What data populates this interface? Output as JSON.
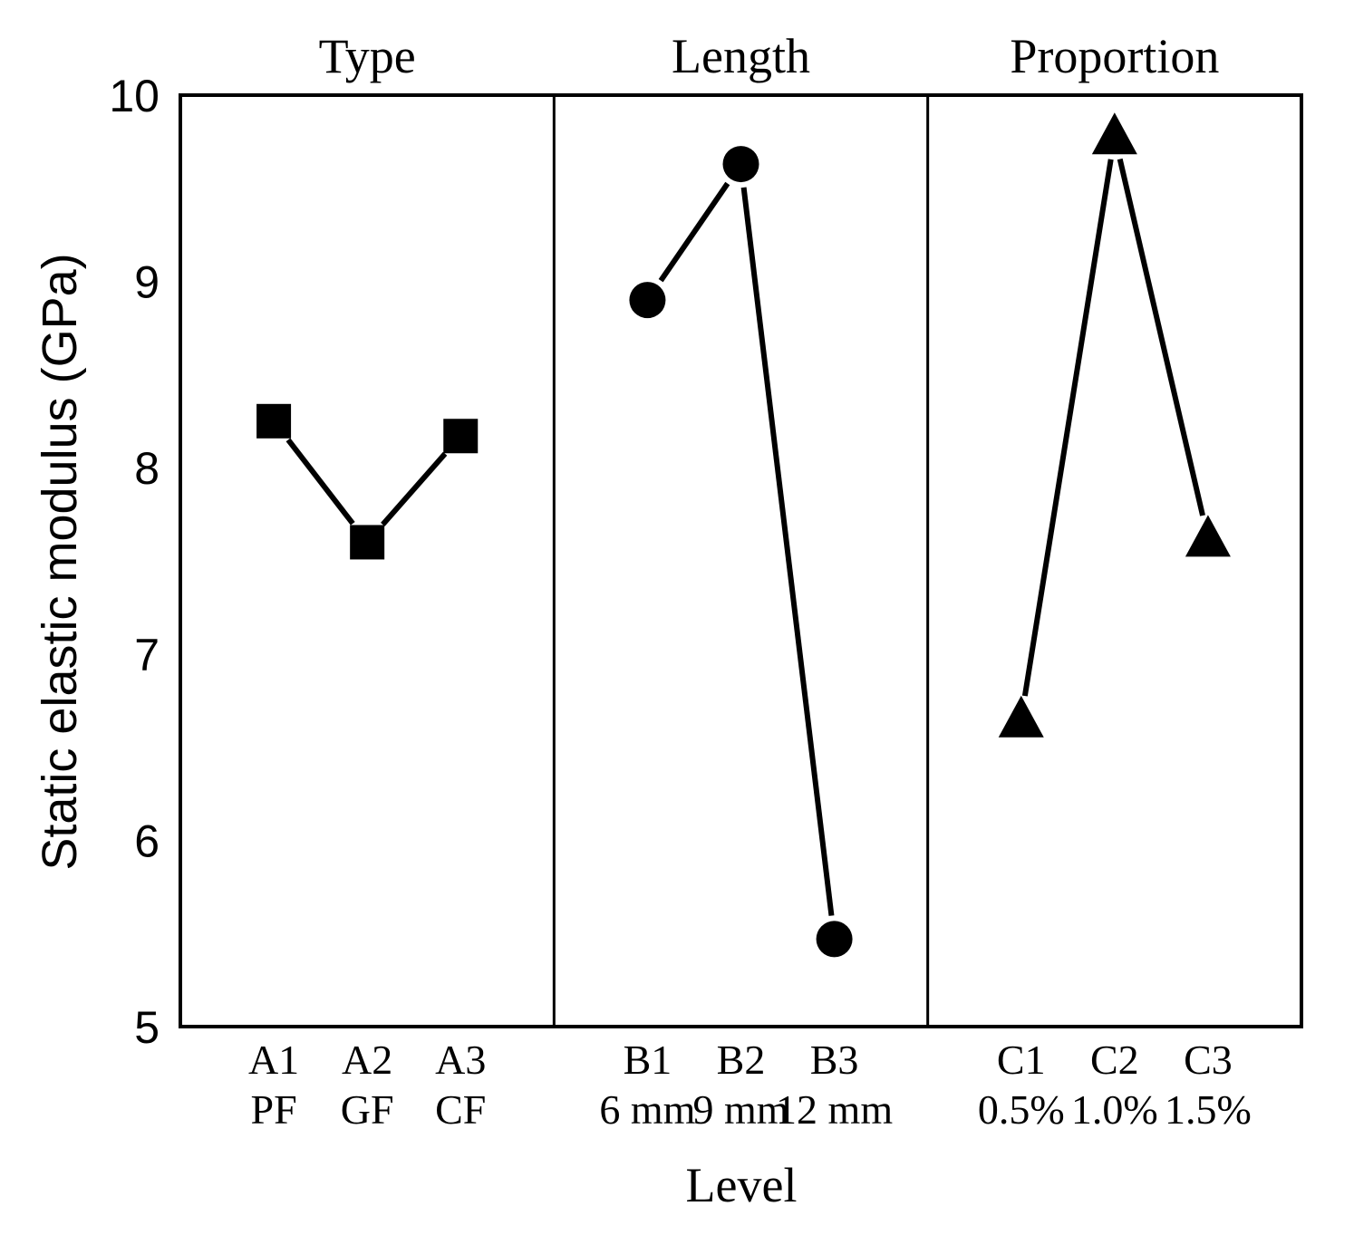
{
  "chart_data": {
    "type": "line",
    "ylabel": "Static elastic modulus (GPa)",
    "xlabel": "Level",
    "ylim": [
      5,
      10
    ],
    "yticks": [
      "5",
      "6",
      "7",
      "8",
      "9",
      "10"
    ],
    "grid": false,
    "panels": [
      {
        "title": "Type",
        "marker": "square",
        "levels": [
          {
            "code": "A1",
            "label": "PF"
          },
          {
            "code": "A2",
            "label": "GF"
          },
          {
            "code": "A3",
            "label": "CF"
          }
        ],
        "values": [
          8.25,
          7.6,
          8.17
        ]
      },
      {
        "title": "Length",
        "marker": "circle",
        "levels": [
          {
            "code": "B1",
            "label": "6 mm"
          },
          {
            "code": "B2",
            "label": "9 mm"
          },
          {
            "code": "B3",
            "label": "12 mm"
          }
        ],
        "values": [
          8.9,
          9.63,
          5.47
        ]
      },
      {
        "title": "Proportion",
        "marker": "triangle",
        "levels": [
          {
            "code": "C1",
            "label": "0.5%"
          },
          {
            "code": "C2",
            "label": "1.0%"
          },
          {
            "code": "C3",
            "label": "1.5%"
          }
        ],
        "values": [
          6.65,
          9.78,
          7.62
        ]
      }
    ]
  }
}
